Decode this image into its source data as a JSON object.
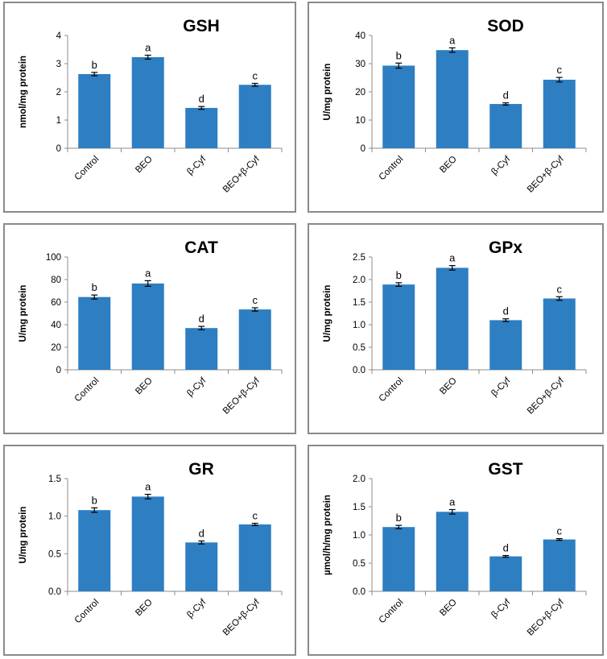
{
  "chart_data": [
    {
      "type": "bar",
      "title": "GSH",
      "ylabel": "nmol/mg protein",
      "categories": [
        "Control",
        "BEO",
        "β-Cyf",
        "BEO+β-Cyf"
      ],
      "values": [
        2.63,
        3.23,
        1.43,
        2.25
      ],
      "errors": [
        0.06,
        0.07,
        0.05,
        0.05
      ],
      "significance": [
        "b",
        "a",
        "d",
        "c"
      ],
      "ylim": [
        0,
        4
      ],
      "ticks": [
        "0",
        "1",
        "2",
        "3",
        "4"
      ]
    },
    {
      "type": "bar",
      "title": "SOD",
      "ylabel": "U/mg protein",
      "categories": [
        "Control",
        "BEO",
        "β-Cyf",
        "BEO+β-Cyf"
      ],
      "values": [
        29.3,
        34.8,
        15.7,
        24.3
      ],
      "errors": [
        0.9,
        0.8,
        0.4,
        0.8
      ],
      "significance": [
        "b",
        "a",
        "d",
        "c"
      ],
      "ylim": [
        0,
        40
      ],
      "ticks": [
        "0",
        "10",
        "20",
        "30",
        "40"
      ]
    },
    {
      "type": "bar",
      "title": "CAT",
      "ylabel": "U/mg protein",
      "categories": [
        "Control",
        "BEO",
        "β-Cyf",
        "BEO+β-Cyf"
      ],
      "values": [
        64.5,
        76.5,
        37.0,
        53.5
      ],
      "errors": [
        1.8,
        2.5,
        1.5,
        1.5
      ],
      "significance": [
        "b",
        "a",
        "d",
        "c"
      ],
      "ylim": [
        0,
        100
      ],
      "ticks": [
        "0",
        "20",
        "40",
        "60",
        "80",
        "100"
      ]
    },
    {
      "type": "bar",
      "title": "GPx",
      "ylabel": "U/mg protein",
      "categories": [
        "Control",
        "BEO",
        "β-Cyf",
        "BEO+β-Cyf"
      ],
      "values": [
        1.89,
        2.26,
        1.1,
        1.58
      ],
      "errors": [
        0.04,
        0.05,
        0.03,
        0.04
      ],
      "significance": [
        "b",
        "a",
        "d",
        "c"
      ],
      "ylim": [
        0,
        2.5
      ],
      "ticks": [
        "0.0",
        "0.5",
        "1.0",
        "1.5",
        "2.0",
        "2.5"
      ]
    },
    {
      "type": "bar",
      "title": "GR",
      "ylabel": "U/mg protein",
      "categories": [
        "Control",
        "BEO",
        "β-Cyf",
        "BEO+β-Cyf"
      ],
      "values": [
        1.08,
        1.26,
        0.65,
        0.89
      ],
      "errors": [
        0.03,
        0.03,
        0.02,
        0.015
      ],
      "significance": [
        "b",
        "a",
        "d",
        "c"
      ],
      "ylim": [
        0,
        1.5
      ],
      "ticks": [
        "0.0",
        "0.5",
        "1.0",
        "1.5"
      ]
    },
    {
      "type": "bar",
      "title": "GST",
      "ylabel": "µmol/h/mg protein",
      "categories": [
        "Control",
        "BEO",
        "β-Cyf",
        "BEO+β-Cyf"
      ],
      "values": [
        1.14,
        1.41,
        0.62,
        0.92
      ],
      "errors": [
        0.03,
        0.04,
        0.015,
        0.015
      ],
      "significance": [
        "b",
        "a",
        "d",
        "c"
      ],
      "ylim": [
        0,
        2.0
      ],
      "ticks": [
        "0.0",
        "0.5",
        "1.0",
        "1.5",
        "2.0"
      ]
    }
  ]
}
